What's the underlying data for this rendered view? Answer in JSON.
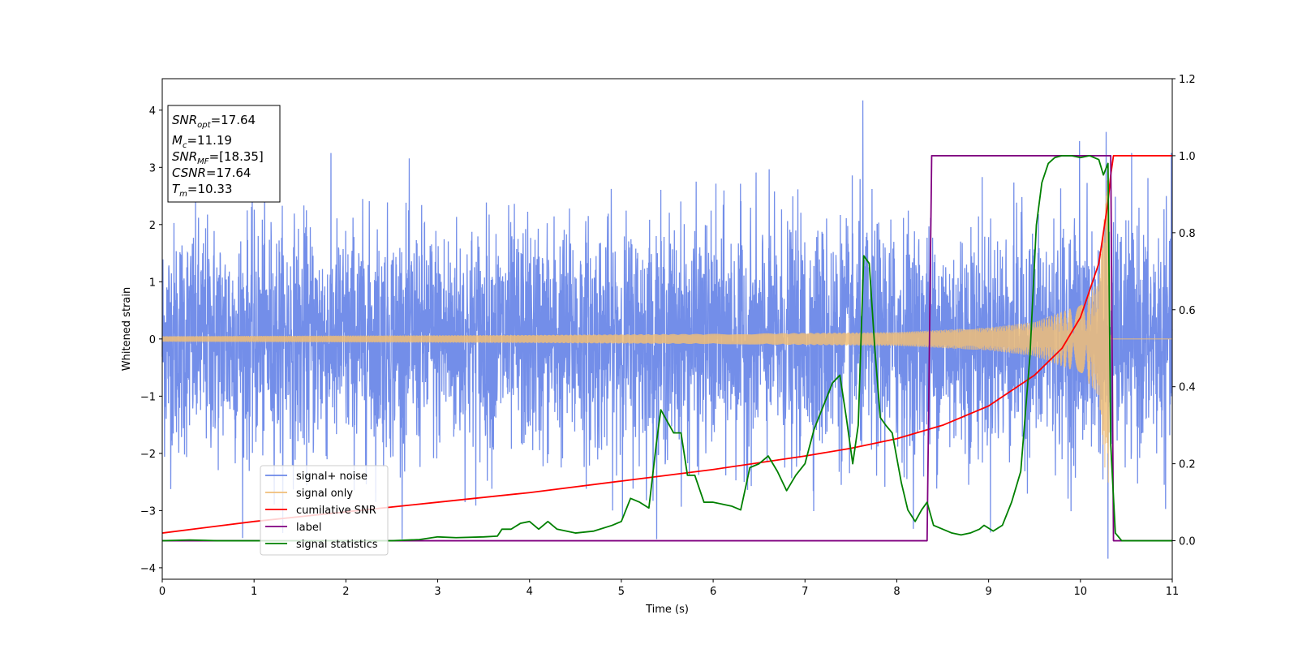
{
  "chart_data": {
    "type": "line",
    "xlabel": "Time (s)",
    "ylabel": "Whitened strain",
    "xlim": [
      0,
      11
    ],
    "ylim_left": [
      -4.2,
      4.55
    ],
    "ylim_right": [
      -0.1,
      1.2
    ],
    "x_ticks": [
      0,
      1,
      2,
      3,
      4,
      5,
      6,
      7,
      8,
      9,
      10,
      11
    ],
    "y_ticks_left": [
      -4,
      -3,
      -2,
      -1,
      0,
      1,
      2,
      3,
      4
    ],
    "y_ticks_right": [
      0.0,
      0.2,
      0.4,
      0.6,
      0.8,
      1.0,
      1.2
    ],
    "grid": false,
    "legend_position": "lower-left",
    "info_box": {
      "snr_opt": "=17.64",
      "mc": "=11.19",
      "snr_mf": "=[18.35]",
      "csnr": "=17.64",
      "tm": "=10.33"
    },
    "series": [
      {
        "name": "signal+ noise",
        "color": "#6b88e8",
        "axis": "left",
        "noise_amplitude_typical": 1.0,
        "x": [
          7.63,
          9.99,
          10.28,
          10.3
        ],
        "y": [
          4.17,
          3.46,
          3.62,
          -3.84
        ]
      },
      {
        "name": "signal only",
        "color": "#f0be78",
        "axis": "left",
        "x": [
          0,
          2,
          4,
          6,
          8,
          9,
          9.5,
          10,
          10.2,
          10.3,
          10.33,
          11
        ],
        "y": [
          0.05,
          0.06,
          0.07,
          0.09,
          0.12,
          0.2,
          0.3,
          0.6,
          1.0,
          2.9,
          0,
          0
        ]
      },
      {
        "name": "cumilative SNR",
        "color": "#ff0000",
        "axis": "right",
        "x": [
          0,
          1,
          2,
          3,
          4,
          5,
          6,
          7,
          7.5,
          8,
          8.5,
          9,
          9.5,
          9.8,
          10,
          10.2,
          10.3,
          10.33,
          10.36,
          11
        ],
        "y": [
          0.02,
          0.05,
          0.075,
          0.1,
          0.125,
          0.155,
          0.185,
          0.22,
          0.24,
          0.265,
          0.3,
          0.35,
          0.43,
          0.5,
          0.58,
          0.72,
          0.88,
          0.95,
          1.0,
          1.0
        ]
      },
      {
        "name": "label",
        "color": "#800080",
        "axis": "right",
        "x": [
          0,
          8.33,
          8.38,
          10.33,
          10.36,
          11
        ],
        "y": [
          0,
          0,
          1,
          1,
          0,
          0
        ]
      },
      {
        "name": "signal statistics",
        "color": "#008000",
        "axis": "right",
        "x": [
          0,
          0.3,
          0.6,
          1,
          1.5,
          2,
          2.5,
          2.8,
          3,
          3.2,
          3.5,
          3.65,
          3.7,
          3.8,
          3.9,
          4,
          4.1,
          4.2,
          4.3,
          4.5,
          4.7,
          4.9,
          5,
          5.1,
          5.2,
          5.3,
          5.38,
          5.43,
          5.5,
          5.57,
          5.65,
          5.72,
          5.8,
          5.9,
          6,
          6.1,
          6.2,
          6.3,
          6.4,
          6.5,
          6.6,
          6.7,
          6.8,
          6.9,
          7,
          7.1,
          7.2,
          7.3,
          7.38,
          7.45,
          7.52,
          7.58,
          7.64,
          7.7,
          7.76,
          7.82,
          7.88,
          7.95,
          8.05,
          8.12,
          8.2,
          8.27,
          8.33,
          8.4,
          8.5,
          8.6,
          8.7,
          8.8,
          8.9,
          8.95,
          9.05,
          9.15,
          9.25,
          9.35,
          9.45,
          9.52,
          9.58,
          9.65,
          9.72,
          9.8,
          9.9,
          10,
          10.1,
          10.2,
          10.25,
          10.3,
          10.33,
          10.38,
          10.45,
          11
        ],
        "y": [
          0,
          0.002,
          0,
          0,
          0,
          0,
          0,
          0.003,
          0.01,
          0.008,
          0.01,
          0.012,
          0.03,
          0.03,
          0.045,
          0.05,
          0.03,
          0.05,
          0.03,
          0.02,
          0.025,
          0.04,
          0.05,
          0.11,
          0.1,
          0.085,
          0.25,
          0.34,
          0.31,
          0.28,
          0.28,
          0.17,
          0.17,
          0.1,
          0.1,
          0.095,
          0.09,
          0.08,
          0.19,
          0.2,
          0.22,
          0.18,
          0.13,
          0.17,
          0.2,
          0.29,
          0.35,
          0.41,
          0.43,
          0.32,
          0.2,
          0.3,
          0.74,
          0.72,
          0.5,
          0.32,
          0.3,
          0.28,
          0.15,
          0.08,
          0.05,
          0.08,
          0.1,
          0.04,
          0.03,
          0.02,
          0.015,
          0.02,
          0.03,
          0.04,
          0.025,
          0.04,
          0.1,
          0.18,
          0.48,
          0.82,
          0.93,
          0.98,
          0.995,
          1.0,
          1.0,
          0.995,
          1.0,
          0.99,
          0.95,
          0.98,
          0.25,
          0.02,
          0.0,
          0.0
        ]
      }
    ]
  }
}
